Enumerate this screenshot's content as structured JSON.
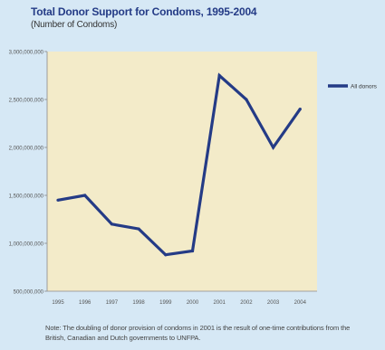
{
  "chart_data": {
    "type": "line",
    "title": "Total Donor Support for Condoms, 1995-2004",
    "subtitle": "(Number of Condoms)",
    "categories": [
      "1995",
      "1996",
      "1997",
      "1998",
      "1999",
      "2000",
      "2001",
      "2002",
      "2003",
      "2004"
    ],
    "series": [
      {
        "name": "All donors",
        "values": [
          1450000000,
          1500000000,
          1200000000,
          1150000000,
          880000000,
          920000000,
          2750000000,
          2500000000,
          2000000000,
          2400000000
        ]
      }
    ],
    "y_ticks": [
      500000000,
      1000000000,
      1500000000,
      2000000000,
      2500000000,
      3000000000
    ],
    "y_tick_labels": [
      "500,000,000",
      "1,000,000,000",
      "1,500,000,000",
      "2,000,000,000",
      "2,500,000,000",
      "3,000,000,000"
    ],
    "ylim": [
      500000000,
      3000000000
    ],
    "grid": false,
    "legend_position": "right",
    "colors": {
      "line": "#243b86",
      "plot_background": "#f3ebc9",
      "page_background": "#d6e8f5",
      "title": "#243b86"
    }
  },
  "note": "Note: The doubling of donor provision of condoms in 2001 is the result of one-time contributions from the British, Canadian and Dutch governments to UNFPA."
}
